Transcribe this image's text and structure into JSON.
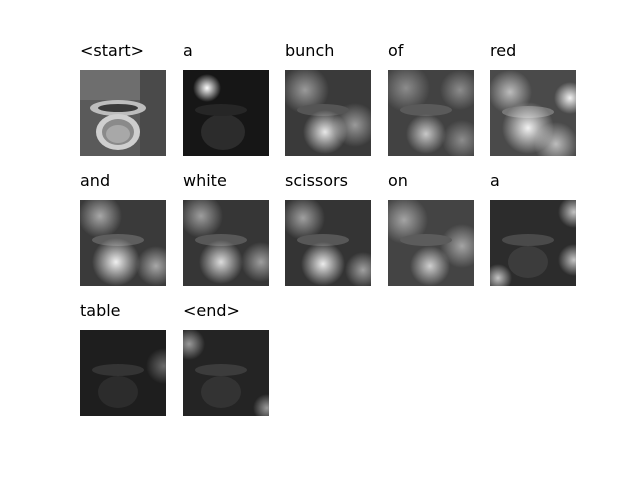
{
  "figure": {
    "words": [
      "<start>",
      "a",
      "bunch",
      "of",
      "red",
      "and",
      "white",
      "scissors",
      "on",
      "a",
      "table",
      "<end>"
    ]
  }
}
